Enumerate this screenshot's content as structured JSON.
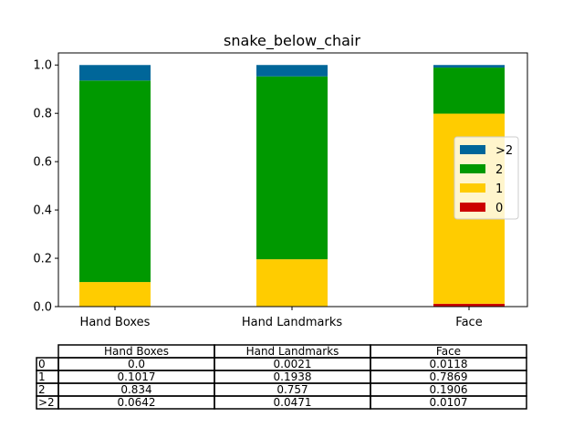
{
  "chart_data": {
    "type": "bar",
    "stacked": true,
    "title": "snake_below_chair",
    "categories": [
      "Hand Boxes",
      "Hand Landmarks",
      "Face"
    ],
    "series": [
      {
        "name": "0",
        "color": "#cc0000",
        "values": [
          0.0,
          0.0021,
          0.0118
        ]
      },
      {
        "name": "1",
        "color": "#ffcc00",
        "values": [
          0.1017,
          0.1938,
          0.7869
        ]
      },
      {
        "name": "2",
        "color": "#009900",
        "values": [
          0.834,
          0.757,
          0.1906
        ]
      },
      {
        "name": ">2",
        "color": "#006699",
        "values": [
          0.0642,
          0.0471,
          0.0107
        ]
      }
    ],
    "ylim": [
      0,
      1.05
    ],
    "yticks": [
      "0.0",
      "0.2",
      "0.4",
      "0.6",
      "0.8",
      "1.0"
    ],
    "grid": false,
    "legend_position": "center-right",
    "legend_order": [
      ">2",
      "2",
      "1",
      "0"
    ],
    "table": {
      "columns": [
        "Hand Boxes",
        "Hand Landmarks",
        "Face"
      ],
      "rows": [
        {
          "label": "0",
          "cells": [
            "0.0",
            "0.0021",
            "0.0118"
          ]
        },
        {
          "label": "1",
          "cells": [
            "0.1017",
            "0.1938",
            "0.7869"
          ]
        },
        {
          "label": "2",
          "cells": [
            "0.834",
            "0.757",
            "0.1906"
          ]
        },
        {
          "label": ">2",
          "cells": [
            "0.0642",
            "0.0471",
            "0.0107"
          ]
        }
      ]
    }
  }
}
